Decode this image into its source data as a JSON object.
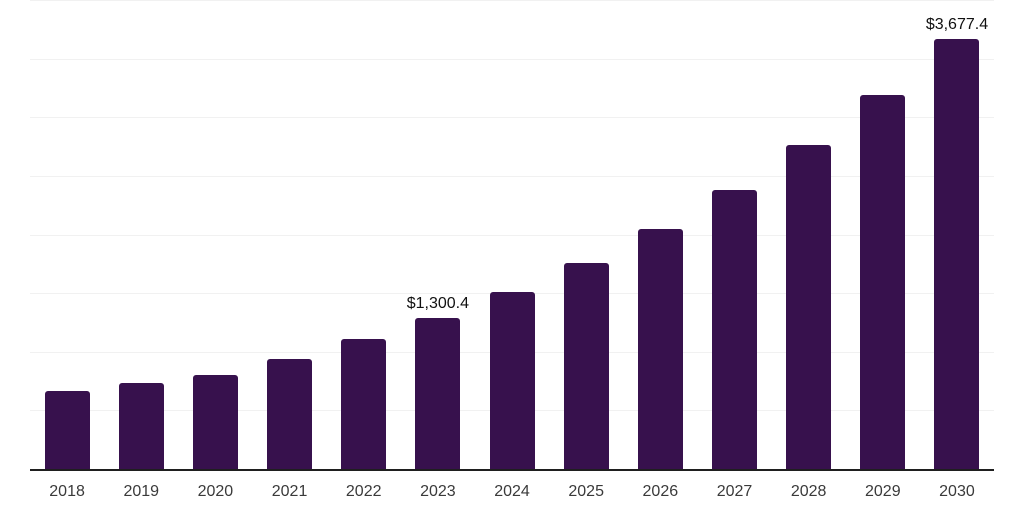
{
  "chart_data": {
    "type": "bar",
    "title": "",
    "xlabel": "",
    "ylabel": "",
    "categories": [
      "2018",
      "2019",
      "2020",
      "2021",
      "2022",
      "2023",
      "2024",
      "2025",
      "2026",
      "2027",
      "2028",
      "2029",
      "2030"
    ],
    "values": [
      678,
      745,
      812,
      950,
      1115,
      1300.4,
      1520,
      1765,
      2060,
      2390,
      2770,
      3200,
      3677.4
    ],
    "data_labels": {
      "2023": "$1,300.4",
      "2030": "$3,677.4"
    },
    "ylim": [
      0,
      4000
    ],
    "gridline_step": 500,
    "grid": "horizontal",
    "legend": "none",
    "colors": {
      "bar": "#37114D",
      "axis_line": "#1f1f1f",
      "gridline": "#f1f1f1",
      "tick_label": "#3a3a3a",
      "data_label": "#111111",
      "background": "#ffffff"
    }
  }
}
